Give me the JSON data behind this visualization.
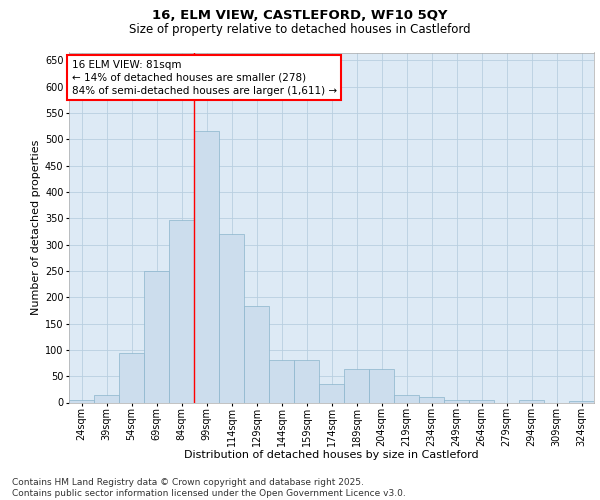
{
  "title_line1": "16, ELM VIEW, CASTLEFORD, WF10 5QY",
  "title_line2": "Size of property relative to detached houses in Castleford",
  "xlabel": "Distribution of detached houses by size in Castleford",
  "ylabel": "Number of detached properties",
  "categories": [
    "24sqm",
    "39sqm",
    "54sqm",
    "69sqm",
    "84sqm",
    "99sqm",
    "114sqm",
    "129sqm",
    "144sqm",
    "159sqm",
    "174sqm",
    "189sqm",
    "204sqm",
    "219sqm",
    "234sqm",
    "249sqm",
    "264sqm",
    "279sqm",
    "294sqm",
    "309sqm",
    "324sqm"
  ],
  "values": [
    5,
    15,
    95,
    250,
    347,
    515,
    320,
    183,
    80,
    80,
    35,
    63,
    63,
    15,
    10,
    5,
    5,
    0,
    5,
    0,
    2
  ],
  "bar_color": "#ccdded",
  "bar_edge_color": "#8ab4cc",
  "grid_color": "#b8cfe0",
  "background_color": "#ddeaf5",
  "annotation_box_text": "16 ELM VIEW: 81sqm\n← 14% of detached houses are smaller (278)\n84% of semi-detached houses are larger (1,611) →",
  "annotation_box_color": "white",
  "annotation_box_edge_color": "red",
  "vline_color": "red",
  "vline_x": 4.5,
  "ylim": [
    0,
    665
  ],
  "yticks": [
    0,
    50,
    100,
    150,
    200,
    250,
    300,
    350,
    400,
    450,
    500,
    550,
    600,
    650
  ],
  "footer_text": "Contains HM Land Registry data © Crown copyright and database right 2025.\nContains public sector information licensed under the Open Government Licence v3.0.",
  "title_fontsize": 9.5,
  "subtitle_fontsize": 8.5,
  "ylabel_fontsize": 8,
  "xlabel_fontsize": 8,
  "tick_fontsize": 7,
  "annotation_fontsize": 7.5,
  "footer_fontsize": 6.5
}
